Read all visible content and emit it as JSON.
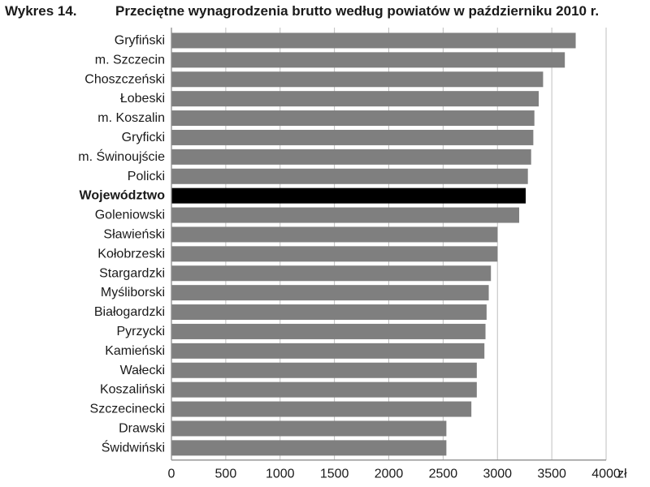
{
  "chart_data": {
    "type": "bar",
    "orientation": "horizontal",
    "figure_label": "Wykres 14.",
    "title": "Przeciętne wynagrodzenia brutto według powiatów w październiku 2010 r.",
    "categories": [
      "Gryfiński",
      "m. Szczecin",
      "Choszczeński",
      "Łobeski",
      "m. Koszalin",
      "Gryficki",
      "m. Świnoujście",
      "Policki",
      "Województwo",
      "Goleniowski",
      "Sławieński",
      "Kołobrzeski",
      "Stargardzki",
      "Myśliborski",
      "Białogardzki",
      "Pyrzycki",
      "Kamieński",
      "Wałecki",
      "Koszaliński",
      "Szczecinecki",
      "Drawski",
      "Świdwiński"
    ],
    "values": [
      3720,
      3620,
      3420,
      3380,
      3340,
      3330,
      3310,
      3280,
      3260,
      3200,
      3000,
      3000,
      2940,
      2920,
      2900,
      2890,
      2880,
      2810,
      2810,
      2760,
      2530,
      2530
    ],
    "highlight_category": "Województwo",
    "xlim": [
      0,
      4000
    ],
    "xticks": [
      "0",
      "500",
      "1000",
      "1500",
      "2000",
      "2500",
      "3000",
      "3500",
      "4000"
    ],
    "x_unit": "zł",
    "colors": {
      "bar": "#7f7f7f",
      "highlight_bar": "#000000",
      "grid": "#bfbfbf",
      "axis": "#8c8c8c"
    },
    "grid": true
  }
}
